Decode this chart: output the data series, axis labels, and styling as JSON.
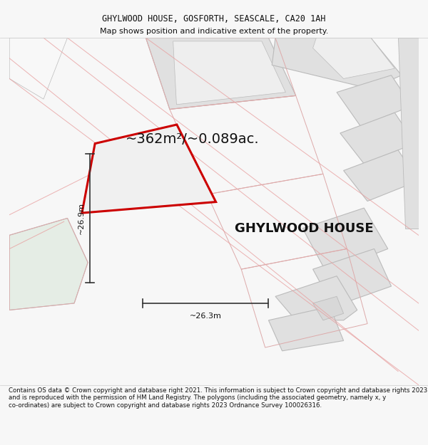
{
  "title_line1": "GHYLWOOD HOUSE, GOSFORTH, SEASCALE, CA20 1AH",
  "title_line2": "Map shows position and indicative extent of the property.",
  "area_label": "~362m²/~0.089ac.",
  "property_label": "GHYLWOOD HOUSE",
  "dim_height": "~26.9m",
  "dim_width": "~26.3m",
  "footer": "Contains OS data © Crown copyright and database right 2021. This information is subject to Crown copyright and database rights 2023 and is reproduced with the permission of HM Land Registry. The polygons (including the associated geometry, namely x, y co-ordinates) are subject to Crown copyright and database rights 2023 Ordnance Survey 100026316.",
  "bg_color": "#f7f7f7",
  "map_bg": "#ffffff",
  "plot_fill": "#f0f0f0",
  "plot_edge": "#cc0000",
  "neighbor_fill": "#e0e0e0",
  "neighbor_edge": "#bbbbbb",
  "neighbor_edge_thin": "#ddaaaa",
  "green_fill": "#e5ede5",
  "green_edge": "#bbbbbb",
  "title_fontsize": 8.5,
  "area_fontsize": 14,
  "label_fontsize": 13,
  "dim_fontsize": 8,
  "footer_fontsize": 6.2
}
